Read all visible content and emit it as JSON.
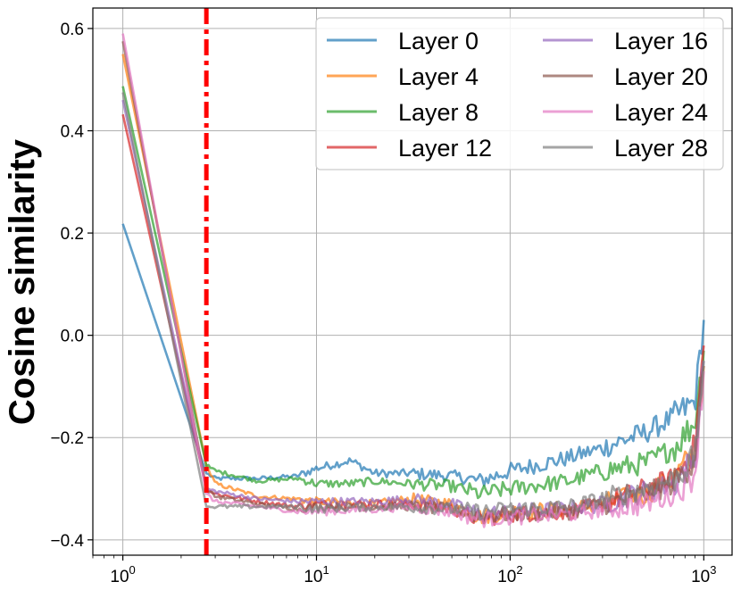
{
  "chart_data": {
    "type": "line",
    "title": "",
    "xlabel": "",
    "ylabel": "Cosine similarity",
    "xscale": "log",
    "xlim": [
      0.7,
      1400
    ],
    "ylim": [
      -0.43,
      0.64
    ],
    "grid": true,
    "legend": {
      "placement": "top-right",
      "columns": 2
    },
    "x_ticks": [
      {
        "base": "10",
        "exp": "0",
        "value": 1
      },
      {
        "base": "10",
        "exp": "1",
        "value": 10
      },
      {
        "base": "10",
        "exp": "2",
        "value": 100
      },
      {
        "base": "10",
        "exp": "3",
        "value": 1000
      }
    ],
    "y_ticks": [
      {
        "label": "−0.4",
        "value": -0.4
      },
      {
        "label": "−0.2",
        "value": -0.2
      },
      {
        "label": "0.0",
        "value": 0.0
      },
      {
        "label": "0.2",
        "value": 0.2
      },
      {
        "label": "0.4",
        "value": 0.4
      },
      {
        "label": "0.6",
        "value": 0.6
      }
    ],
    "vline": {
      "x": 2.7,
      "color": "#ff0000",
      "style": "dash-dot"
    },
    "series": [
      {
        "name": "Layer 0",
        "color": "#1f77b4",
        "points": [
          [
            1,
            0.218
          ],
          [
            2.7,
            -0.27
          ],
          [
            3,
            -0.28
          ],
          [
            5,
            -0.28
          ],
          [
            8,
            -0.275
          ],
          [
            10,
            -0.26
          ],
          [
            15,
            -0.245
          ],
          [
            20,
            -0.27
          ],
          [
            30,
            -0.27
          ],
          [
            50,
            -0.275
          ],
          [
            70,
            -0.285
          ],
          [
            100,
            -0.265
          ],
          [
            200,
            -0.24
          ],
          [
            300,
            -0.22
          ],
          [
            500,
            -0.19
          ],
          [
            700,
            -0.16
          ],
          [
            900,
            -0.13
          ],
          [
            1000,
            0.03
          ]
        ]
      },
      {
        "name": "Layer 4",
        "color": "#ff7f0e",
        "points": [
          [
            1,
            0.55
          ],
          [
            2.7,
            -0.255
          ],
          [
            3,
            -0.29
          ],
          [
            5,
            -0.315
          ],
          [
            8,
            -0.32
          ],
          [
            10,
            -0.325
          ],
          [
            20,
            -0.33
          ],
          [
            30,
            -0.32
          ],
          [
            50,
            -0.33
          ],
          [
            70,
            -0.355
          ],
          [
            100,
            -0.345
          ],
          [
            200,
            -0.34
          ],
          [
            300,
            -0.33
          ],
          [
            500,
            -0.31
          ],
          [
            700,
            -0.28
          ],
          [
            900,
            -0.23
          ],
          [
            1000,
            -0.06
          ]
        ]
      },
      {
        "name": "Layer 8",
        "color": "#2ca02c",
        "points": [
          [
            1,
            0.487
          ],
          [
            2.7,
            -0.255
          ],
          [
            3,
            -0.265
          ],
          [
            5,
            -0.285
          ],
          [
            8,
            -0.28
          ],
          [
            10,
            -0.29
          ],
          [
            15,
            -0.29
          ],
          [
            20,
            -0.285
          ],
          [
            30,
            -0.29
          ],
          [
            50,
            -0.295
          ],
          [
            70,
            -0.31
          ],
          [
            100,
            -0.3
          ],
          [
            200,
            -0.285
          ],
          [
            300,
            -0.265
          ],
          [
            500,
            -0.25
          ],
          [
            700,
            -0.22
          ],
          [
            900,
            -0.17
          ],
          [
            1000,
            -0.03
          ]
        ]
      },
      {
        "name": "Layer 12",
        "color": "#d62728",
        "points": [
          [
            1,
            0.432
          ],
          [
            2.7,
            -0.3
          ],
          [
            3,
            -0.31
          ],
          [
            5,
            -0.325
          ],
          [
            8,
            -0.335
          ],
          [
            10,
            -0.33
          ],
          [
            20,
            -0.33
          ],
          [
            30,
            -0.33
          ],
          [
            50,
            -0.34
          ],
          [
            70,
            -0.36
          ],
          [
            100,
            -0.35
          ],
          [
            200,
            -0.345
          ],
          [
            300,
            -0.33
          ],
          [
            500,
            -0.3
          ],
          [
            700,
            -0.28
          ],
          [
            900,
            -0.22
          ],
          [
            1000,
            -0.02
          ]
        ]
      },
      {
        "name": "Layer 16",
        "color": "#9467bd",
        "points": [
          [
            1,
            0.46
          ],
          [
            2.7,
            -0.3
          ],
          [
            3,
            -0.305
          ],
          [
            5,
            -0.32
          ],
          [
            8,
            -0.325
          ],
          [
            10,
            -0.325
          ],
          [
            20,
            -0.325
          ],
          [
            30,
            -0.32
          ],
          [
            50,
            -0.33
          ],
          [
            70,
            -0.35
          ],
          [
            100,
            -0.345
          ],
          [
            200,
            -0.34
          ],
          [
            300,
            -0.33
          ],
          [
            500,
            -0.305
          ],
          [
            700,
            -0.29
          ],
          [
            900,
            -0.24
          ],
          [
            1000,
            -0.05
          ]
        ]
      },
      {
        "name": "Layer 20",
        "color": "#8c564b",
        "points": [
          [
            1,
            0.575
          ],
          [
            2.7,
            -0.3
          ],
          [
            3,
            -0.315
          ],
          [
            5,
            -0.33
          ],
          [
            8,
            -0.34
          ],
          [
            10,
            -0.335
          ],
          [
            20,
            -0.335
          ],
          [
            30,
            -0.335
          ],
          [
            50,
            -0.34
          ],
          [
            70,
            -0.355
          ],
          [
            100,
            -0.35
          ],
          [
            200,
            -0.345
          ],
          [
            300,
            -0.33
          ],
          [
            500,
            -0.31
          ],
          [
            700,
            -0.29
          ],
          [
            900,
            -0.24
          ],
          [
            1000,
            -0.06
          ]
        ]
      },
      {
        "name": "Layer 24",
        "color": "#e377c2",
        "points": [
          [
            1,
            0.59
          ],
          [
            2.7,
            -0.31
          ],
          [
            3,
            -0.325
          ],
          [
            5,
            -0.335
          ],
          [
            8,
            -0.345
          ],
          [
            10,
            -0.345
          ],
          [
            20,
            -0.34
          ],
          [
            30,
            -0.335
          ],
          [
            50,
            -0.345
          ],
          [
            70,
            -0.36
          ],
          [
            100,
            -0.355
          ],
          [
            200,
            -0.35
          ],
          [
            300,
            -0.34
          ],
          [
            500,
            -0.33
          ],
          [
            700,
            -0.31
          ],
          [
            900,
            -0.27
          ],
          [
            1000,
            -0.07
          ]
        ]
      },
      {
        "name": "Layer 28",
        "color": "#7f7f7f",
        "points": [
          [
            1,
            0.475
          ],
          [
            2.7,
            -0.335
          ],
          [
            3,
            -0.335
          ],
          [
            5,
            -0.335
          ],
          [
            8,
            -0.335
          ],
          [
            10,
            -0.34
          ],
          [
            20,
            -0.335
          ],
          [
            30,
            -0.335
          ],
          [
            50,
            -0.34
          ],
          [
            70,
            -0.345
          ],
          [
            100,
            -0.34
          ],
          [
            200,
            -0.335
          ],
          [
            300,
            -0.32
          ],
          [
            500,
            -0.3
          ],
          [
            700,
            -0.28
          ],
          [
            900,
            -0.24
          ],
          [
            1000,
            -0.05
          ]
        ]
      }
    ]
  }
}
